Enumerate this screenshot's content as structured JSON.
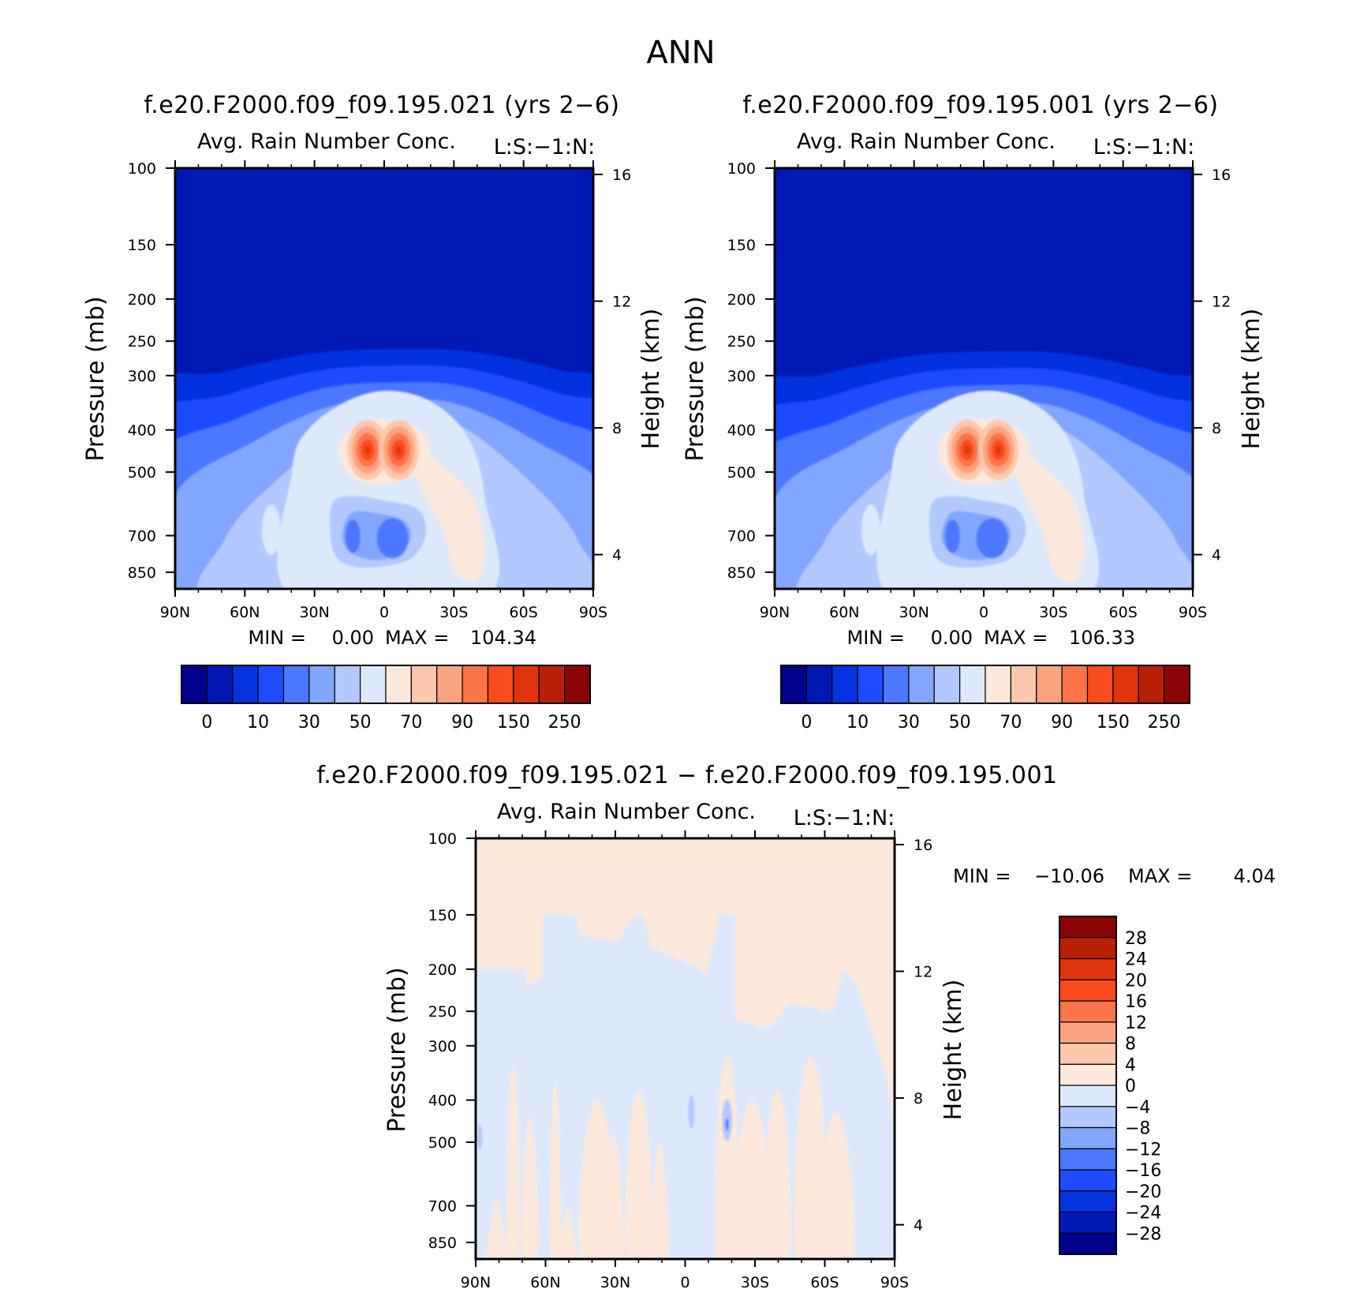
{
  "figure": {
    "title": "ANN"
  },
  "chart_data": [
    {
      "type": "heatmap",
      "title": "f.e20.F2000.f09_f09.195.021 (yrs 2−6)",
      "subtitle": "Avg. Rain Number Conc.",
      "units_label": "L:S:−1:N:",
      "ylabel": "Pressure (mb)",
      "ylabel_right": "Height (km)",
      "x_ticks": [
        "90N",
        "60N",
        "30N",
        "0",
        "30S",
        "60S",
        "90S"
      ],
      "y_ticks": [
        "100",
        "150",
        "200",
        "250",
        "300",
        "400",
        "500",
        "700",
        "850"
      ],
      "y_ticks_right": [
        "16",
        "12",
        "8",
        "4"
      ],
      "stats": {
        "min_label": "MIN =",
        "min": "0.00",
        "max_label": "MAX =",
        "max": "104.34"
      },
      "levels": [
        0,
        5,
        10,
        20,
        30,
        40,
        50,
        60,
        70,
        80,
        90,
        100,
        150,
        200,
        250
      ],
      "colorbar_labels": [
        "0",
        "10",
        "30",
        "50",
        "70",
        "90",
        "150",
        "250"
      ],
      "colors": [
        "#00008c",
        "#0018b4",
        "#0533e0",
        "#1f4bff",
        "#4b78ff",
        "#82a6ff",
        "#b3c8ff",
        "#dde9fb",
        "#fde9dc",
        "#fcc8ad",
        "#fba47f",
        "#fc7548",
        "#f94c1e",
        "#e0340c",
        "#b82006",
        "#8a0404"
      ]
    },
    {
      "type": "heatmap",
      "title": "f.e20.F2000.f09_f09.195.001 (yrs 2−6)",
      "subtitle": "Avg. Rain Number Conc.",
      "units_label": "L:S:−1:N:",
      "ylabel": "Pressure (mb)",
      "ylabel_right": "Height (km)",
      "x_ticks": [
        "90N",
        "60N",
        "30N",
        "0",
        "30S",
        "60S",
        "90S"
      ],
      "y_ticks": [
        "100",
        "150",
        "200",
        "250",
        "300",
        "400",
        "500",
        "700",
        "850"
      ],
      "y_ticks_right": [
        "16",
        "12",
        "8",
        "4"
      ],
      "stats": {
        "min_label": "MIN =",
        "min": "0.00",
        "max_label": "MAX =",
        "max": "106.33"
      },
      "levels": [
        0,
        5,
        10,
        20,
        30,
        40,
        50,
        60,
        70,
        80,
        90,
        100,
        150,
        200,
        250
      ],
      "colorbar_labels": [
        "0",
        "10",
        "30",
        "50",
        "70",
        "90",
        "150",
        "250"
      ],
      "colors": [
        "#00008c",
        "#0018b4",
        "#0533e0",
        "#1f4bff",
        "#4b78ff",
        "#82a6ff",
        "#b3c8ff",
        "#dde9fb",
        "#fde9dc",
        "#fcc8ad",
        "#fba47f",
        "#fc7548",
        "#f94c1e",
        "#e0340c",
        "#b82006",
        "#8a0404"
      ]
    },
    {
      "type": "heatmap",
      "title": "f.e20.F2000.f09_f09.195.021 − f.e20.F2000.f09_f09.195.001",
      "subtitle": "Avg. Rain Number Conc.",
      "units_label": "L:S:−1:N:",
      "ylabel": "Pressure (mb)",
      "ylabel_right": "Height (km)",
      "x_ticks": [
        "90N",
        "60N",
        "30N",
        "0",
        "30S",
        "60S",
        "90S"
      ],
      "y_ticks": [
        "100",
        "150",
        "200",
        "250",
        "300",
        "400",
        "500",
        "700",
        "850"
      ],
      "y_ticks_right": [
        "16",
        "12",
        "8",
        "4"
      ],
      "stats": {
        "min_label": "MIN =",
        "min": "−10.06",
        "max_label": "MAX =",
        "max": "4.04"
      },
      "levels": [
        -28,
        -24,
        -20,
        -16,
        -12,
        -8,
        -4,
        0,
        4,
        8,
        12,
        16,
        20,
        24,
        28
      ],
      "colorbar_labels": [
        "−28",
        "−24",
        "−20",
        "−16",
        "−12",
        "−8",
        "−4",
        "0",
        "4",
        "8",
        "12",
        "16",
        "20",
        "24",
        "28"
      ],
      "colors": [
        "#00008c",
        "#0018b4",
        "#0533e0",
        "#1f4bff",
        "#4b78ff",
        "#82a6ff",
        "#b3c8ff",
        "#dde9fb",
        "#fde9dc",
        "#fcc8ad",
        "#fba47f",
        "#fc7548",
        "#f94c1e",
        "#e0340c",
        "#b82006",
        "#8a0404"
      ]
    }
  ]
}
